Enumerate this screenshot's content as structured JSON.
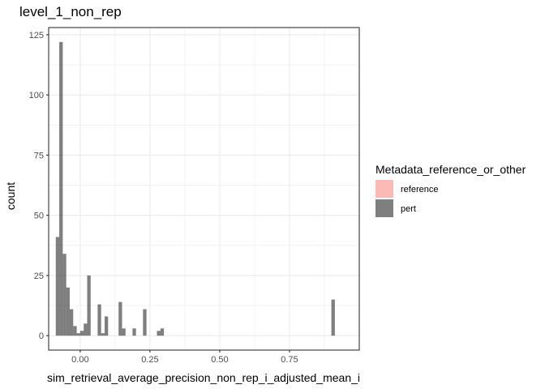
{
  "chart_data": {
    "type": "bar",
    "title": "level_1_non_rep",
    "xlabel": "sim_retrieval_average_precision_non_rep_i_adjusted_mean_i",
    "ylabel": "count",
    "xlim": [
      -0.113,
      1.0
    ],
    "ylim": [
      -6.0,
      128.0
    ],
    "x_ticks": [
      0.0,
      0.25,
      0.5,
      0.75
    ],
    "x_tick_labels": [
      "0.00",
      "0.25",
      "0.50",
      "0.75"
    ],
    "y_ticks": [
      0,
      25,
      50,
      75,
      100,
      125
    ],
    "y_tick_labels": [
      "0",
      "25",
      "50",
      "75",
      "100",
      "125"
    ],
    "grid": true,
    "bin_width": 0.0125,
    "legend": {
      "title": "Metadata_reference_or_other",
      "placement": "right",
      "entries": [
        {
          "label": "reference",
          "color": "#f8766d"
        },
        {
          "label": "pert",
          "color": "#000000"
        }
      ]
    },
    "series": [
      {
        "name": "reference",
        "color": "#f8766d",
        "bins": []
      },
      {
        "name": "pert",
        "color": "#000000",
        "bins": [
          {
            "x0": -0.0875,
            "x1": -0.075,
            "count": 41
          },
          {
            "x0": -0.075,
            "x1": -0.0625,
            "count": 122
          },
          {
            "x0": -0.0625,
            "x1": -0.05,
            "count": 34
          },
          {
            "x0": -0.05,
            "x1": -0.0375,
            "count": 20
          },
          {
            "x0": -0.0375,
            "x1": -0.025,
            "count": 11
          },
          {
            "x0": -0.025,
            "x1": -0.0125,
            "count": 4
          },
          {
            "x0": -0.0125,
            "x1": 0.0,
            "count": 1
          },
          {
            "x0": 0.0,
            "x1": 0.0125,
            "count": 2
          },
          {
            "x0": 0.0125,
            "x1": 0.025,
            "count": 5
          },
          {
            "x0": 0.025,
            "x1": 0.0375,
            "count": 25
          },
          {
            "x0": 0.0625,
            "x1": 0.075,
            "count": 13
          },
          {
            "x0": 0.075,
            "x1": 0.0875,
            "count": 1
          },
          {
            "x0": 0.0875,
            "x1": 0.1,
            "count": 8
          },
          {
            "x0": 0.1375,
            "x1": 0.15,
            "count": 14
          },
          {
            "x0": 0.15,
            "x1": 0.1625,
            "count": 3
          },
          {
            "x0": 0.1875,
            "x1": 0.2,
            "count": 3
          },
          {
            "x0": 0.225,
            "x1": 0.2375,
            "count": 11
          },
          {
            "x0": 0.275,
            "x1": 0.2875,
            "count": 2
          },
          {
            "x0": 0.2875,
            "x1": 0.3,
            "count": 3
          },
          {
            "x0": 0.9,
            "x1": 0.9125,
            "count": 15
          }
        ]
      }
    ]
  }
}
